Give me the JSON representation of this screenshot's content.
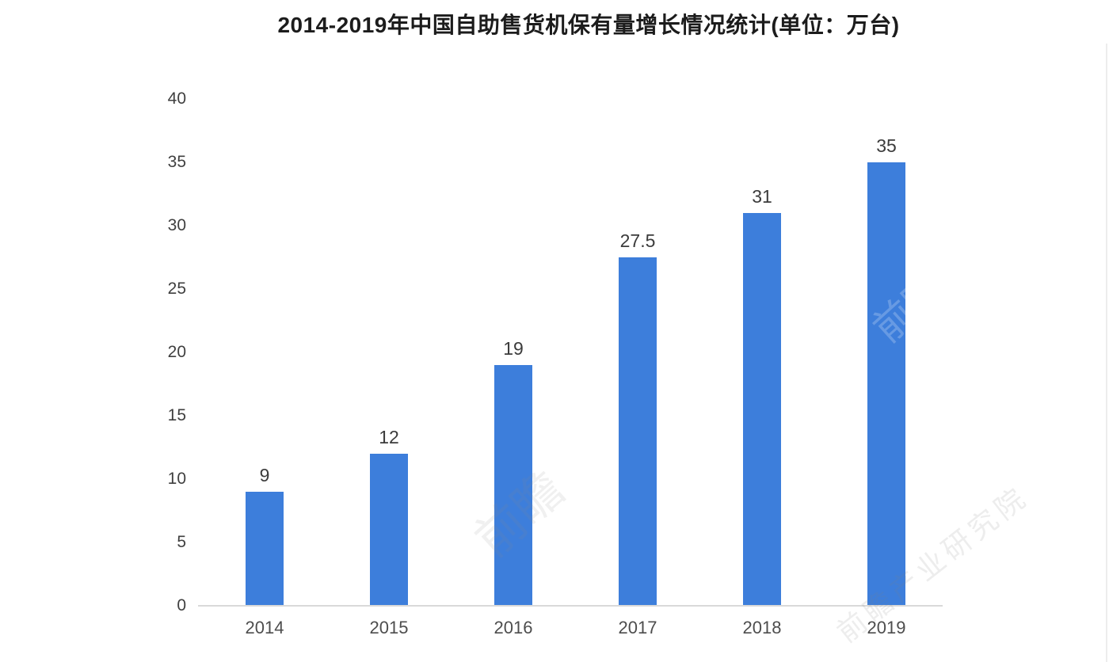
{
  "chart_data": {
    "type": "bar",
    "title": "2014-2019年中国自助售货机保有量增长情况统计(单位：万台)",
    "unit": "万台",
    "categories": [
      "2014",
      "2015",
      "2016",
      "2017",
      "2018",
      "2019"
    ],
    "values": [
      9,
      12,
      19,
      27.5,
      31,
      35
    ],
    "value_labels": [
      "9",
      "12",
      "19",
      "27.5",
      "31",
      "35"
    ],
    "ylim": [
      0,
      40
    ],
    "yticks": [
      0,
      5,
      10,
      15,
      20,
      25,
      30,
      35,
      40
    ],
    "grid": false,
    "legend_position": "none",
    "bar_color": "#3d7edb",
    "axis_line_color": "#d9d9d9",
    "tick_label_color": "#3f3f3f",
    "title_color": "#1c1c1c"
  },
  "watermarks": {
    "mid": "前瞻",
    "on_bar": "前瞻",
    "bottom_right": "前瞻产业研究院"
  }
}
